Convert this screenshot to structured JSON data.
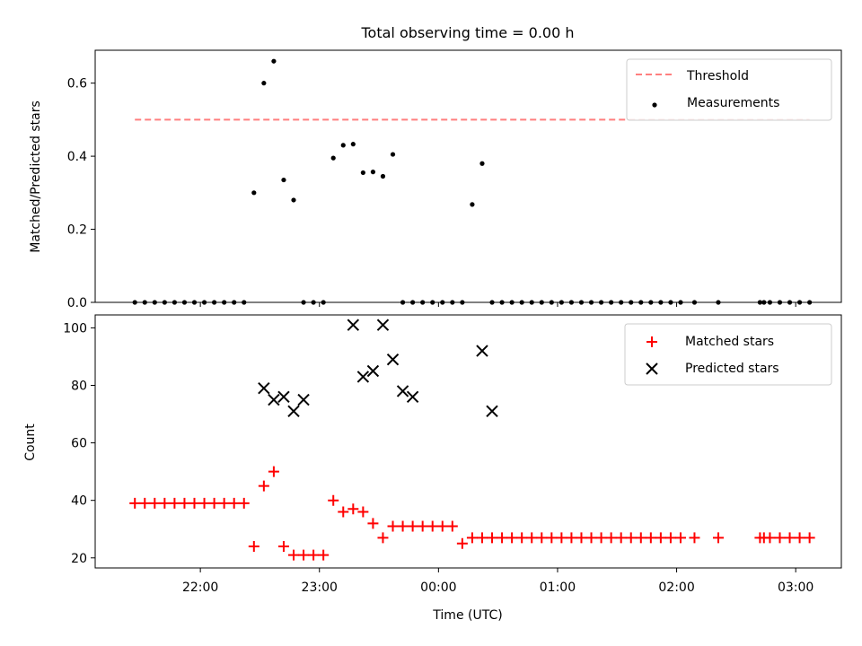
{
  "chart_data": [
    {
      "type": "scatter",
      "title": "Total observing time = 0.00 h",
      "xlabel": "",
      "ylabel": "Matched/Predicted stars",
      "ylim": [
        0,
        0.69
      ],
      "yticks": [
        "0.0",
        "0.2",
        "0.4",
        "0.6"
      ],
      "ytick_values": [
        0,
        0.2,
        0.4,
        0.6
      ],
      "legend_position": "top-right",
      "threshold": {
        "name": "Threshold",
        "value": 0.5,
        "x_start": "21:27",
        "x_end": "03:07",
        "color": "#ff7f7f"
      },
      "series": [
        {
          "name": "Measurements",
          "color": "#000000",
          "x": [
            "21:27",
            "21:32",
            "21:37",
            "21:42",
            "21:47",
            "21:52",
            "21:57",
            "22:02",
            "22:07",
            "22:12",
            "22:17",
            "22:22",
            "22:27",
            "22:32",
            "22:37",
            "22:42",
            "22:47",
            "22:52",
            "22:57",
            "23:02",
            "23:07",
            "23:12",
            "23:17",
            "23:22",
            "23:27",
            "23:32",
            "23:37",
            "23:42",
            "23:47",
            "23:52",
            "23:57",
            "00:02",
            "00:07",
            "00:12",
            "00:17",
            "00:22",
            "00:27",
            "00:32",
            "00:37",
            "00:42",
            "00:47",
            "00:52",
            "00:57",
            "01:02",
            "01:07",
            "01:12",
            "01:17",
            "01:22",
            "01:27",
            "01:32",
            "01:37",
            "01:42",
            "01:47",
            "01:52",
            "01:57",
            "02:02",
            "02:09",
            "02:21",
            "02:42",
            "02:44",
            "02:47",
            "02:52",
            "02:57",
            "03:02",
            "03:07"
          ],
          "y": [
            0,
            0,
            0,
            0,
            0,
            0,
            0,
            0,
            0,
            0,
            0,
            0,
            0.3,
            0.6,
            0.66,
            0.335,
            0.28,
            0,
            0,
            0,
            0.395,
            0.43,
            0.433,
            0.355,
            0.357,
            0.345,
            0.405,
            0,
            0,
            0,
            0,
            0,
            0,
            0,
            0.268,
            0.38,
            0,
            0,
            0,
            0,
            0,
            0,
            0,
            0,
            0,
            0,
            0,
            0,
            0,
            0,
            0,
            0,
            0,
            0,
            0,
            0,
            0,
            0,
            0,
            0,
            0,
            0,
            0,
            0,
            0
          ]
        }
      ]
    },
    {
      "type": "scatter",
      "title": "",
      "xlabel": "Time (UTC)",
      "ylabel": "Count",
      "ylim": [
        16.5,
        104.5
      ],
      "yticks": [
        "20",
        "40",
        "60",
        "80",
        "100"
      ],
      "ytick_values": [
        20,
        40,
        60,
        80,
        100
      ],
      "xticks": [
        "22:00",
        "23:00",
        "00:00",
        "01:00",
        "02:00",
        "03:00"
      ],
      "xtick_values": [
        "22:00",
        "23:00",
        "00:00",
        "01:00",
        "02:00",
        "03:00"
      ],
      "legend_position": "top-right",
      "series": [
        {
          "name": "Matched stars",
          "marker": "+",
          "color": "#ff0000",
          "x": [
            "21:27",
            "21:32",
            "21:37",
            "21:42",
            "21:47",
            "21:52",
            "21:57",
            "22:02",
            "22:07",
            "22:12",
            "22:17",
            "22:22",
            "22:27",
            "22:32",
            "22:37",
            "22:42",
            "22:47",
            "22:52",
            "22:57",
            "23:02",
            "23:07",
            "23:12",
            "23:17",
            "23:22",
            "23:27",
            "23:32",
            "23:37",
            "23:42",
            "23:47",
            "23:52",
            "23:57",
            "00:02",
            "00:07",
            "00:12",
            "00:17",
            "00:22",
            "00:27",
            "00:32",
            "00:37",
            "00:42",
            "00:47",
            "00:52",
            "00:57",
            "01:02",
            "01:07",
            "01:12",
            "01:17",
            "01:22",
            "01:27",
            "01:32",
            "01:37",
            "01:42",
            "01:47",
            "01:52",
            "01:57",
            "02:02",
            "02:09",
            "02:21",
            "02:42",
            "02:44",
            "02:47",
            "02:52",
            "02:57",
            "03:02",
            "03:07"
          ],
          "y": [
            39,
            39,
            39,
            39,
            39,
            39,
            39,
            39,
            39,
            39,
            39,
            39,
            24,
            45,
            50,
            24,
            21,
            21,
            21,
            21,
            40,
            36,
            37,
            36,
            32,
            27,
            31,
            31,
            31,
            31,
            31,
            31,
            31,
            25,
            27,
            27,
            27,
            27,
            27,
            27,
            27,
            27,
            27,
            27,
            27,
            27,
            27,
            27,
            27,
            27,
            27,
            27,
            27,
            27,
            27,
            27,
            27,
            27,
            27,
            27,
            27,
            27,
            27,
            27,
            27
          ]
        },
        {
          "name": "Predicted stars",
          "marker": "x",
          "color": "#000000",
          "x": [
            "22:32",
            "22:37",
            "22:42",
            "22:47",
            "22:52",
            "23:17",
            "23:22",
            "23:27",
            "23:32",
            "23:37",
            "23:42",
            "23:47",
            "00:22",
            "00:27"
          ],
          "y": [
            79,
            75,
            76,
            71,
            75,
            101,
            83,
            85,
            101,
            89,
            78,
            76,
            92,
            71
          ]
        }
      ]
    }
  ]
}
